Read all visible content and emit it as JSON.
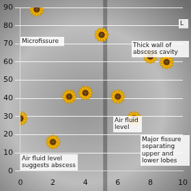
{
  "chart_data": {
    "type": "scatter",
    "x": [
      0,
      1,
      2,
      3,
      4,
      5,
      6,
      7,
      8,
      9
    ],
    "values": [
      29,
      89,
      16,
      41,
      43,
      75,
      41,
      29,
      63,
      60
    ],
    "xlim": [
      0,
      10
    ],
    "ylim": [
      0,
      90
    ],
    "xticks": [
      0,
      2,
      4,
      6,
      8,
      10
    ],
    "yticks": [
      0,
      10,
      20,
      30,
      40,
      50,
      60,
      70,
      80,
      90
    ],
    "grid": true,
    "marker": "sunflower",
    "color": "#f4b400",
    "annotations": [
      "L",
      "Microfissure",
      "Thick wall of abscess cavity",
      "Air fluid level",
      "Major fissure separating upper and lower lobes",
      "Air fluid level suggests abscess"
    ]
  }
}
